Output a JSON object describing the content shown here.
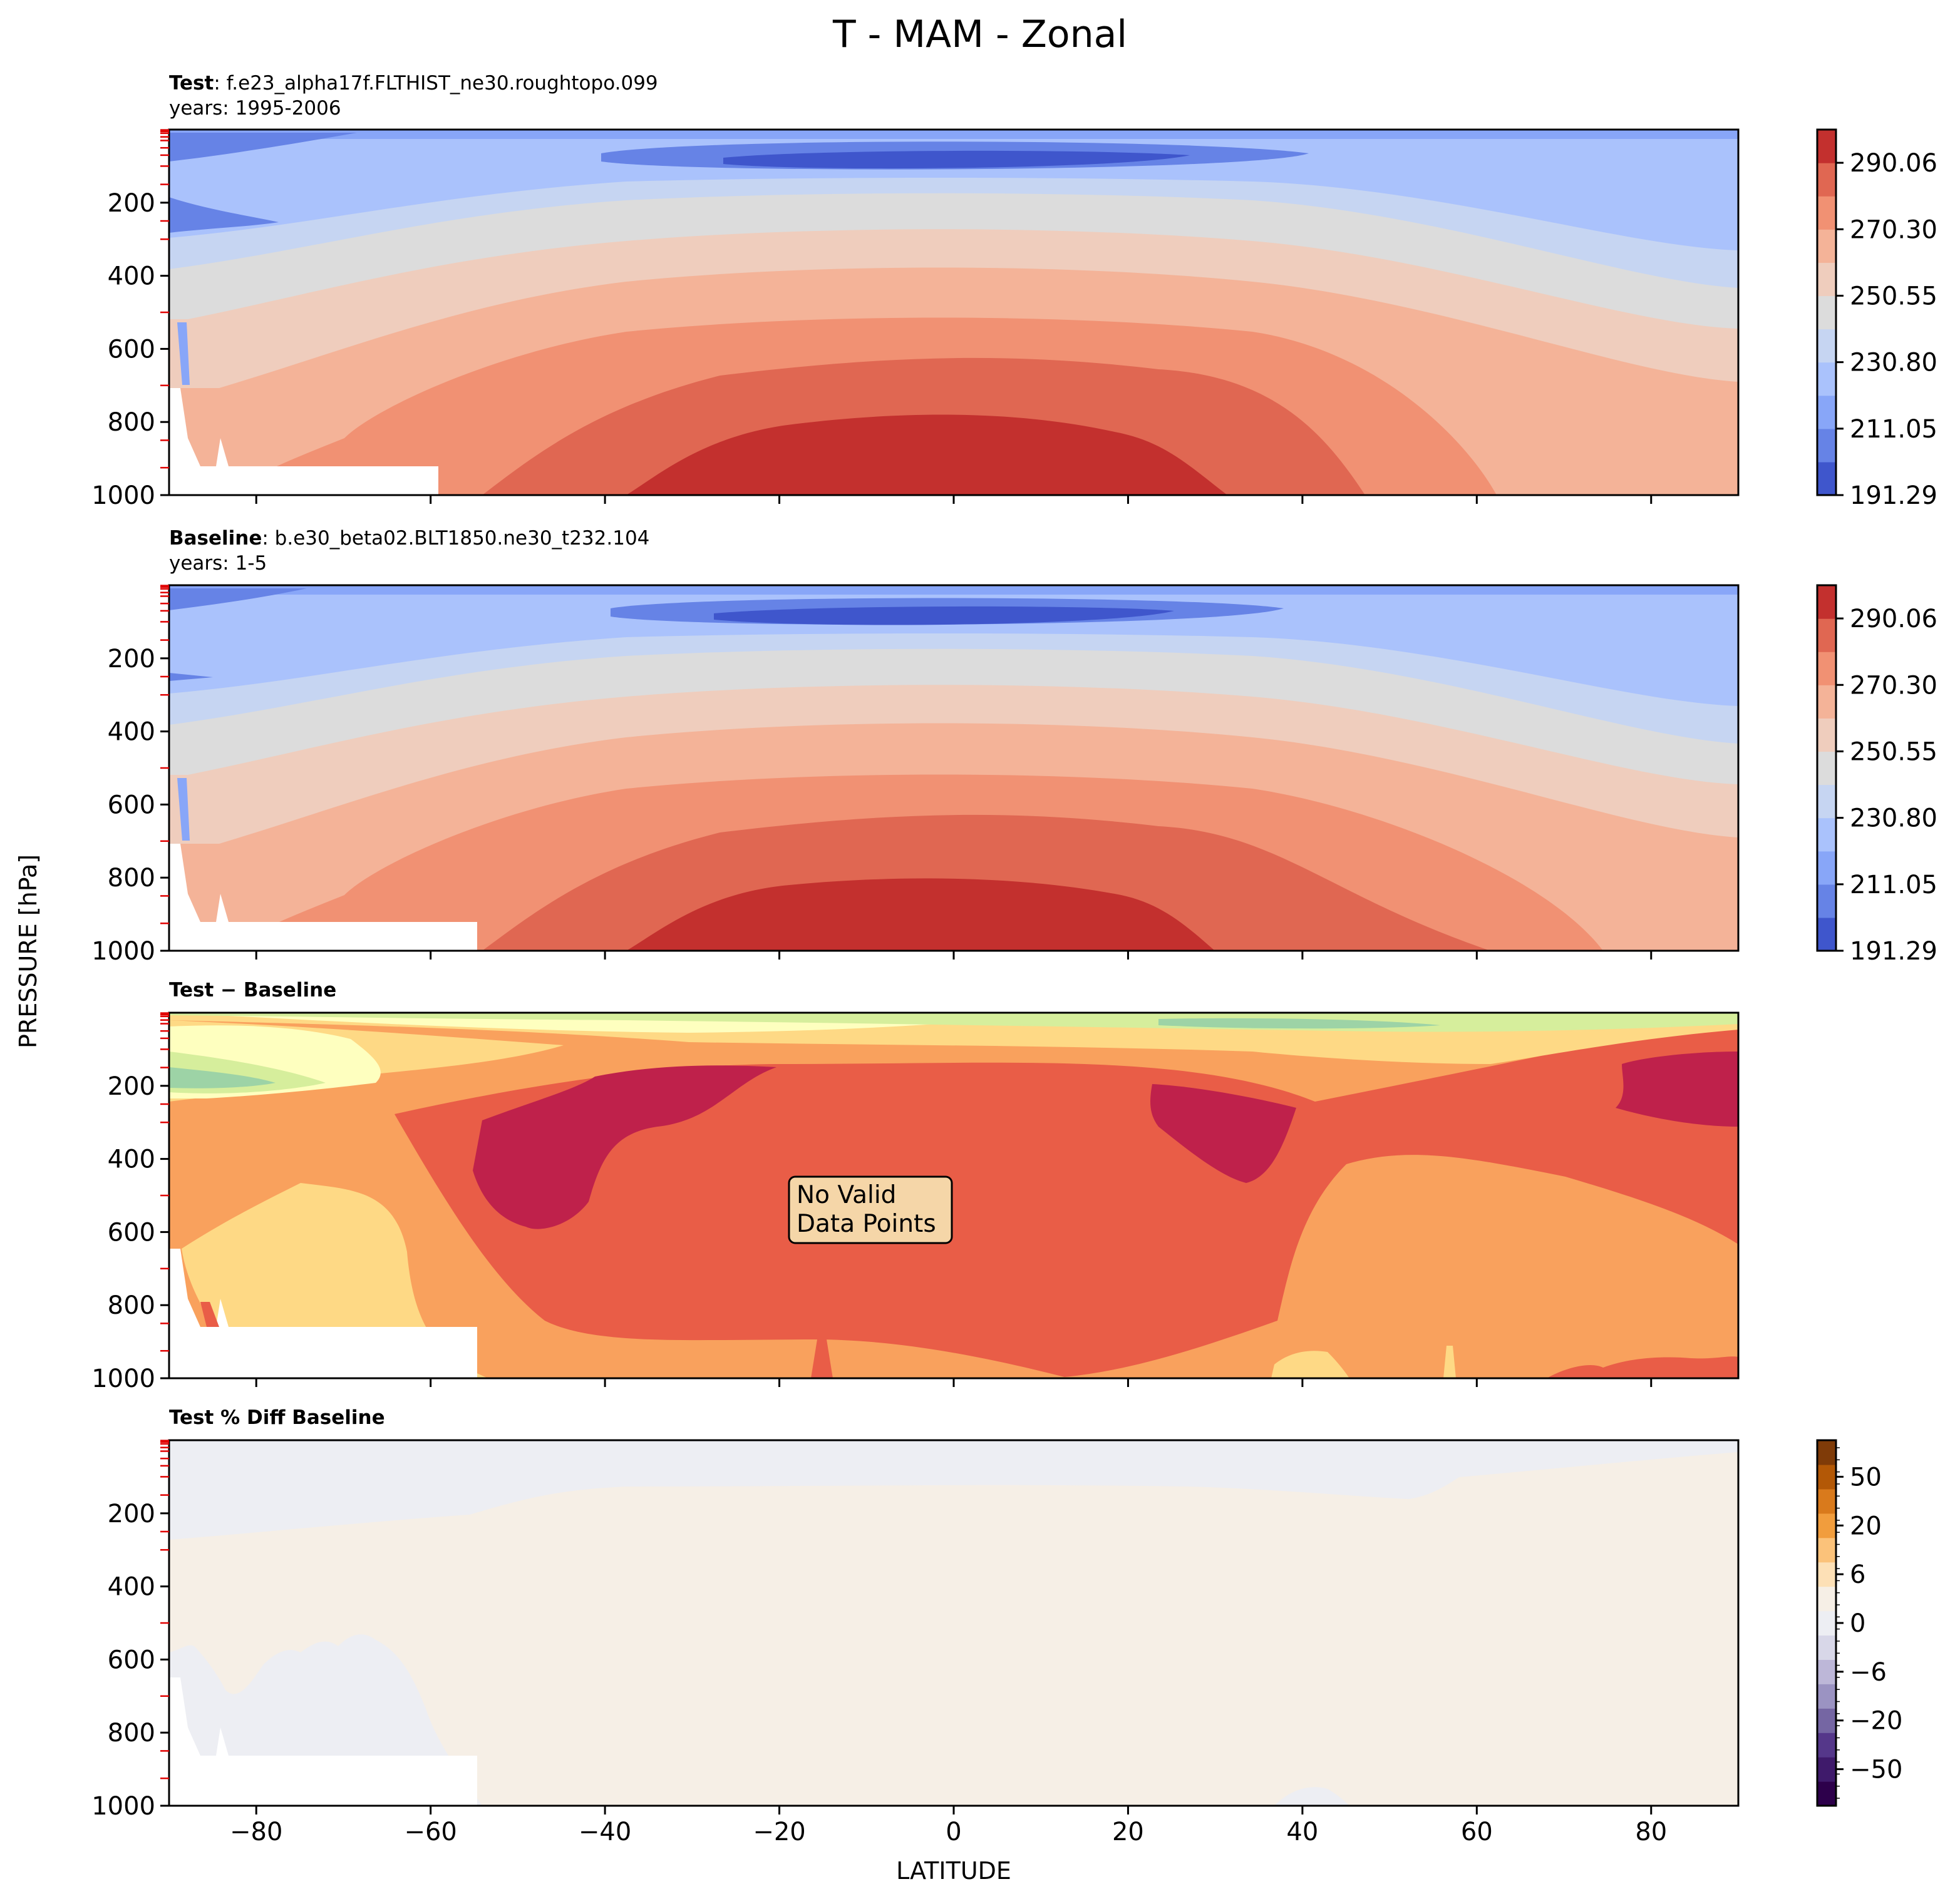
{
  "title": "T - MAM - Zonal",
  "xlabel": "LATITUDE",
  "ylabel": "PRESSURE [hPa]",
  "xticks": [
    "−80",
    "−60",
    "−40",
    "−20",
    "0",
    "20",
    "40",
    "60",
    "80"
  ],
  "yticks": [
    "200",
    "400",
    "600",
    "800",
    "1000"
  ],
  "panels": {
    "test": {
      "label_bold": "Test",
      "label_rest": ": f.e23_alpha17f.FLTHIST_ne30.roughtopo.099",
      "years": "years: 1995-2006"
    },
    "baseline": {
      "label_bold": "Baseline",
      "label_rest": ": b.e30_beta02.BLT1850.ne30_t232.104",
      "years": "years: 1-5"
    },
    "diff": {
      "label_bold": "Test − Baseline",
      "note_line1": "No Valid",
      "note_line2": "Data Points"
    },
    "pct": {
      "label_bold": "Test % Diff Baseline"
    }
  },
  "colorbar_abs": {
    "ticks": [
      "290.06",
      "270.30",
      "250.55",
      "230.80",
      "211.05",
      "191.29"
    ]
  },
  "colorbar_pct": {
    "ticks": [
      "50",
      "20",
      "6",
      "0",
      "−6",
      "−20",
      "−50"
    ]
  },
  "colors": {
    "abs_levels": [
      "#3f56cc",
      "#6683e6",
      "#88a6f8",
      "#aac2fc",
      "#c6d5f2",
      "#dcdcdc",
      "#efcdbd",
      "#f4b398",
      "#f19173",
      "#e06752",
      "#c3302e"
    ],
    "diff_levels": [
      "#9dd3a6",
      "#d6ee9c",
      "#feffbf",
      "#fed985",
      "#f9a15d",
      "#e95d47",
      "#bf214b"
    ],
    "pct_levels": [
      "#edeef3",
      "#f6efe6"
    ]
  },
  "chart_data": {
    "type": "heatmap",
    "x_range": [
      -90,
      90
    ],
    "y_range_hPa": [
      1000,
      0
    ],
    "abs_contour_levels_K": [
      191.29,
      201.17,
      211.05,
      220.92,
      230.8,
      240.67,
      250.55,
      260.42,
      270.3,
      280.18,
      290.06,
      299.93
    ],
    "pct_colorbar_ticks": [
      50,
      20,
      6,
      0,
      -6,
      -20,
      -50
    ],
    "panels": [
      "Test",
      "Baseline",
      "Test − Baseline",
      "Test % Diff Baseline"
    ],
    "annotation": "No Valid Data Points"
  }
}
